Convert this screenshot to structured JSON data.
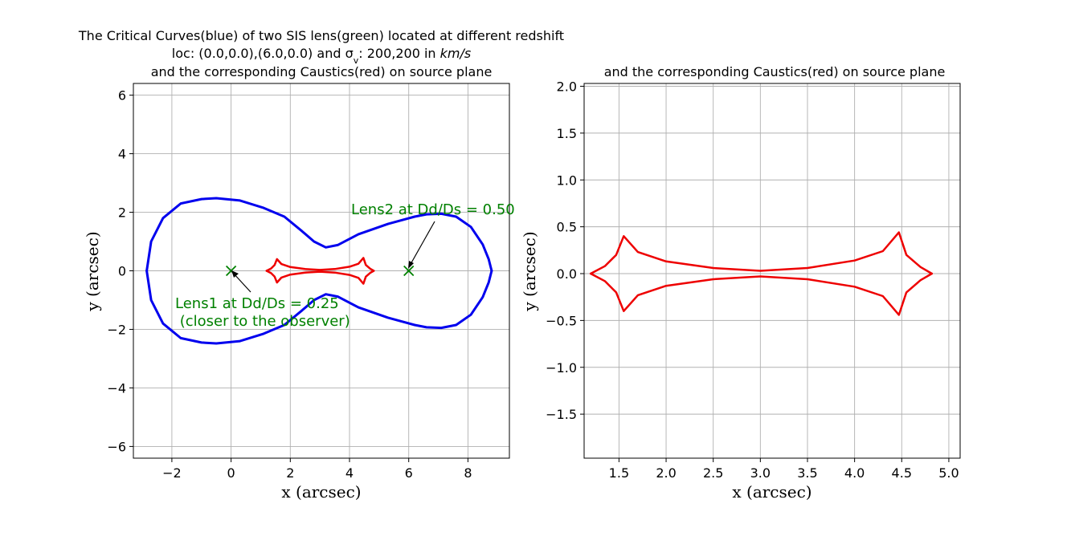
{
  "chart_data": [
    {
      "type": "line",
      "title_lines": [
        "The Critical Curves(blue) of two SIS lens(green) located at different redshift",
        "loc: (0.0,0.0),(6.0,0.0) and σ",
        "and the corresponding Caustics(red) on source plane"
      ],
      "title_sub": "v",
      "title_suffix": ": 200,200 in ",
      "title_units": "km/s",
      "xlabel": "x (arcsec)",
      "ylabel": "y (arcsec)",
      "xlim": [
        -3.3,
        9.4
      ],
      "ylim": [
        -6.4,
        6.4
      ],
      "xticks": [
        -2,
        0,
        2,
        4,
        6,
        8
      ],
      "yticks": [
        -6,
        -4,
        -2,
        0,
        2,
        4,
        6
      ],
      "xtick_labels": [
        "−2",
        "0",
        "2",
        "4",
        "6",
        "8"
      ],
      "ytick_labels": [
        "−6",
        "−4",
        "−2",
        "0",
        "2",
        "4",
        "6"
      ],
      "grid": true,
      "colors": {
        "critical": "#0000ee",
        "caustic": "#ee0000",
        "lens": "#008000"
      },
      "critical_curve_upper": [
        [
          -2.85,
          0.0
        ],
        [
          -2.7,
          1.0
        ],
        [
          -2.3,
          1.8
        ],
        [
          -1.7,
          2.3
        ],
        [
          -1.0,
          2.45
        ],
        [
          -0.5,
          2.48
        ],
        [
          0.3,
          2.4
        ],
        [
          1.1,
          2.15
        ],
        [
          1.8,
          1.85
        ],
        [
          2.4,
          1.35
        ],
        [
          2.8,
          1.0
        ],
        [
          3.2,
          0.8
        ],
        [
          3.6,
          0.88
        ],
        [
          4.3,
          1.25
        ],
        [
          5.3,
          1.6
        ],
        [
          6.2,
          1.85
        ],
        [
          6.6,
          1.93
        ],
        [
          7.1,
          1.95
        ],
        [
          7.6,
          1.85
        ],
        [
          8.1,
          1.5
        ],
        [
          8.5,
          0.9
        ],
        [
          8.7,
          0.4
        ],
        [
          8.8,
          0.0
        ]
      ],
      "critical_curve_lower": [
        [
          -2.85,
          0.0
        ],
        [
          -2.7,
          -1.0
        ],
        [
          -2.3,
          -1.8
        ],
        [
          -1.7,
          -2.3
        ],
        [
          -1.0,
          -2.45
        ],
        [
          -0.5,
          -2.48
        ],
        [
          0.3,
          -2.4
        ],
        [
          1.1,
          -2.15
        ],
        [
          1.8,
          -1.85
        ],
        [
          2.4,
          -1.35
        ],
        [
          2.8,
          -1.0
        ],
        [
          3.2,
          -0.8
        ],
        [
          3.6,
          -0.88
        ],
        [
          4.3,
          -1.25
        ],
        [
          5.3,
          -1.6
        ],
        [
          6.2,
          -1.85
        ],
        [
          6.6,
          -1.93
        ],
        [
          7.1,
          -1.95
        ],
        [
          7.6,
          -1.85
        ],
        [
          8.1,
          -1.5
        ],
        [
          8.5,
          -0.9
        ],
        [
          8.7,
          -0.4
        ],
        [
          8.8,
          0.0
        ]
      ],
      "caustic_upper": [
        [
          1.2,
          0.0
        ],
        [
          1.35,
          0.08
        ],
        [
          1.47,
          0.2
        ],
        [
          1.55,
          0.4
        ],
        [
          1.7,
          0.23
        ],
        [
          2.0,
          0.13
        ],
        [
          2.5,
          0.06
        ],
        [
          3.0,
          0.03
        ],
        [
          3.5,
          0.06
        ],
        [
          4.0,
          0.14
        ],
        [
          4.3,
          0.24
        ],
        [
          4.47,
          0.44
        ],
        [
          4.55,
          0.2
        ],
        [
          4.7,
          0.07
        ],
        [
          4.82,
          0.0
        ]
      ],
      "caustic_lower": [
        [
          1.2,
          0.0
        ],
        [
          1.35,
          -0.08
        ],
        [
          1.47,
          -0.2
        ],
        [
          1.55,
          -0.4
        ],
        [
          1.7,
          -0.23
        ],
        [
          2.0,
          -0.13
        ],
        [
          2.5,
          -0.06
        ],
        [
          3.0,
          -0.03
        ],
        [
          3.5,
          -0.06
        ],
        [
          4.0,
          -0.14
        ],
        [
          4.3,
          -0.24
        ],
        [
          4.47,
          -0.44
        ],
        [
          4.55,
          -0.2
        ],
        [
          4.7,
          -0.07
        ],
        [
          4.82,
          0.0
        ]
      ],
      "lenses": [
        {
          "x": 0.0,
          "y": 0.0,
          "label": "Lens1 at Dd/Ds = 0.25",
          "label2": " (closer to the observer)"
        },
        {
          "x": 6.0,
          "y": 0.0,
          "label": "Lens2 at Dd/Ds = 0.50",
          "label2": ""
        }
      ]
    },
    {
      "type": "line",
      "title": "and the corresponding Caustics(red) on source plane",
      "xlabel": "x (arcsec)",
      "ylabel": "y (arcsec)",
      "xlim": [
        1.13,
        5.12
      ],
      "ylim": [
        -1.97,
        2.03
      ],
      "xticks": [
        1.5,
        2.0,
        2.5,
        3.0,
        3.5,
        4.0,
        4.5,
        5.0
      ],
      "yticks": [
        -1.5,
        -1.0,
        -0.5,
        0.0,
        0.5,
        1.0,
        1.5,
        2.0
      ],
      "xtick_labels": [
        "1.5",
        "2.0",
        "2.5",
        "3.0",
        "3.5",
        "4.0",
        "4.5",
        "5.0"
      ],
      "ytick_labels": [
        "−1.5",
        "−1.0",
        "−0.5",
        "0.0",
        "0.5",
        "1.0",
        "1.5",
        "2.0"
      ],
      "grid": true,
      "colors": {
        "caustic": "#ee0000"
      },
      "caustic_upper": [
        [
          1.2,
          0.0
        ],
        [
          1.35,
          0.08
        ],
        [
          1.47,
          0.2
        ],
        [
          1.55,
          0.4
        ],
        [
          1.7,
          0.23
        ],
        [
          2.0,
          0.13
        ],
        [
          2.5,
          0.06
        ],
        [
          3.0,
          0.03
        ],
        [
          3.5,
          0.06
        ],
        [
          4.0,
          0.14
        ],
        [
          4.3,
          0.24
        ],
        [
          4.47,
          0.44
        ],
        [
          4.55,
          0.2
        ],
        [
          4.7,
          0.07
        ],
        [
          4.82,
          0.0
        ]
      ],
      "caustic_lower": [
        [
          1.2,
          0.0
        ],
        [
          1.35,
          -0.08
        ],
        [
          1.47,
          -0.2
        ],
        [
          1.55,
          -0.4
        ],
        [
          1.7,
          -0.23
        ],
        [
          2.0,
          -0.13
        ],
        [
          2.5,
          -0.06
        ],
        [
          3.0,
          -0.03
        ],
        [
          3.5,
          -0.06
        ],
        [
          4.0,
          -0.14
        ],
        [
          4.3,
          -0.24
        ],
        [
          4.47,
          -0.44
        ],
        [
          4.55,
          -0.2
        ],
        [
          4.7,
          -0.07
        ],
        [
          4.82,
          0.0
        ]
      ]
    }
  ]
}
